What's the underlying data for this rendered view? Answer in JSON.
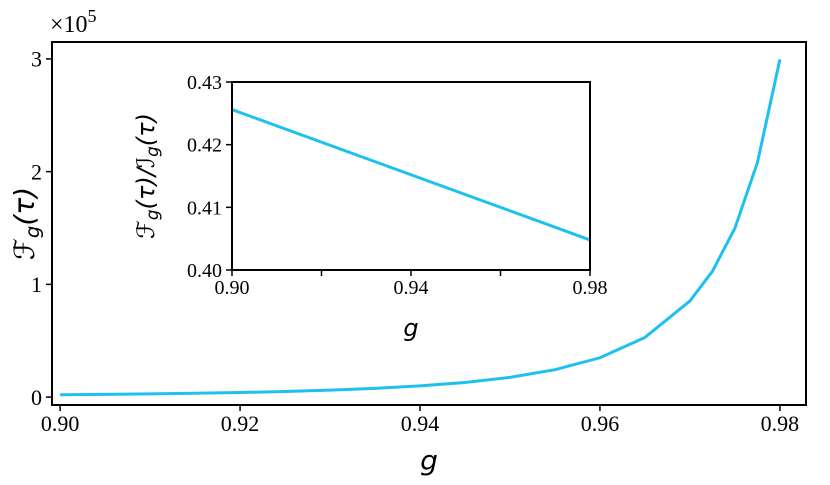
{
  "chart_data": [
    {
      "type": "line",
      "xlabel": "g",
      "ylabel": [
        {
          "text": "ℱ"
        },
        {
          "text": "g",
          "sub": true
        },
        {
          "text": "(τ)"
        }
      ],
      "offset": {
        "base": "×10",
        "exp": "5"
      },
      "x": [
        0.9,
        0.905,
        0.91,
        0.915,
        0.92,
        0.925,
        0.93,
        0.935,
        0.94,
        0.945,
        0.95,
        0.955,
        0.96,
        0.965,
        0.97,
        0.9725,
        0.975,
        0.9775,
        0.98
      ],
      "series": [
        {
          "color": "#1ec0f0",
          "values": [
            0.0204,
            0.0239,
            0.0283,
            0.0338,
            0.0407,
            0.0498,
            0.0617,
            0.0776,
            0.0994,
            0.13,
            0.175,
            0.243,
            0.349,
            0.529,
            0.853,
            1.116,
            1.499,
            2.08,
            2.995
          ]
        }
      ],
      "xlim": [
        0.8991,
        0.9829
      ],
      "ylim": [
        -0.07,
        3.15
      ],
      "xticks": [
        {
          "value": 0.9,
          "label": "0.90"
        },
        {
          "value": 0.92,
          "label": "0.92"
        },
        {
          "value": 0.94,
          "label": "0.94"
        },
        {
          "value": 0.96,
          "label": "0.96"
        },
        {
          "value": 0.98,
          "label": "0.98"
        }
      ],
      "yticks": [
        0,
        1,
        2,
        3
      ]
    },
    {
      "type": "line",
      "xlabel": "g",
      "ylabel": [
        {
          "text": "ℱ"
        },
        {
          "text": "g",
          "sub": true
        },
        {
          "text": "(τ)/"
        },
        {
          "text": "ℐ"
        },
        {
          "text": "g",
          "sub": true
        },
        {
          "text": "(τ)"
        }
      ],
      "x": [
        0.9,
        0.98
      ],
      "series": [
        {
          "color": "#1ec0f0",
          "values": [
            0.4256,
            0.4048
          ]
        }
      ],
      "xlim": [
        0.9,
        0.98
      ],
      "ylim": [
        0.4,
        0.43
      ],
      "xticks": [
        {
          "value": 0.9,
          "label": "0.90"
        },
        {
          "value": 0.94,
          "label": "0.94"
        },
        {
          "value": 0.98,
          "label": "0.98"
        }
      ],
      "xminor": [
        0.92,
        0.96
      ],
      "yticks": [
        {
          "value": 0.4,
          "label": "0.40"
        },
        {
          "value": 0.41,
          "label": "0.41"
        },
        {
          "value": 0.42,
          "label": "0.42"
        },
        {
          "value": 0.43,
          "label": "0.43"
        }
      ]
    }
  ]
}
